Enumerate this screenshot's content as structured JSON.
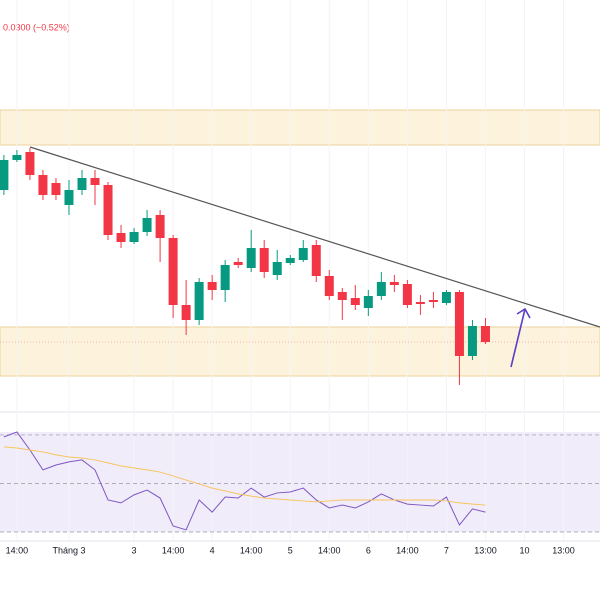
{
  "chart_data": [
    {
      "type": "candlestick",
      "header": "0.0300 (−0.52%)",
      "categories": [
        null,
        null,
        null,
        null,
        null,
        null,
        null,
        null,
        null,
        null,
        null,
        null,
        null,
        null,
        null,
        null,
        null,
        null,
        null,
        null,
        null,
        null,
        null,
        null,
        null,
        null,
        null,
        null,
        null,
        null,
        null,
        null,
        null,
        null,
        null,
        null,
        null,
        null
      ],
      "open": [
        410,
        440,
        448,
        425,
        417,
        395,
        410,
        422,
        415,
        367,
        358,
        368,
        385,
        362,
        295,
        280,
        318,
        310,
        338,
        332,
        352,
        325,
        337,
        340,
        355,
        324,
        308,
        302,
        292,
        304,
        318,
        316,
        298,
        300,
        297,
        308,
        244,
        274
      ],
      "high": [
        445,
        450,
        452,
        430,
        422,
        420,
        430,
        430,
        418,
        375,
        372,
        390,
        390,
        365,
        320,
        322,
        325,
        340,
        342,
        370,
        360,
        350,
        345,
        360,
        360,
        330,
        312,
        315,
        310,
        328,
        325,
        320,
        305,
        308,
        310,
        310,
        280,
        282
      ],
      "low": [
        405,
        438,
        420,
        400,
        400,
        385,
        405,
        395,
        360,
        352,
        356,
        364,
        338,
        282,
        265,
        275,
        300,
        298,
        332,
        328,
        322,
        320,
        335,
        338,
        318,
        300,
        280,
        290,
        284,
        300,
        308,
        292,
        285,
        292,
        295,
        215,
        240,
        256
      ],
      "close": [
        440,
        445,
        425,
        405,
        405,
        410,
        422,
        415,
        365,
        358,
        368,
        382,
        362,
        295,
        280,
        318,
        310,
        335,
        335,
        352,
        328,
        338,
        342,
        352,
        324,
        304,
        300,
        295,
        304,
        318,
        315,
        295,
        296,
        298,
        308,
        244,
        274,
        258
      ],
      "up_color": "#089981",
      "down_color": "#f23645",
      "xlim": [
        -0.3,
        45.8
      ],
      "ylim": [
        190,
        600
      ],
      "xticks": [
        {
          "value": 1,
          "label": "14:00"
        },
        {
          "value": 5,
          "label": "Tháng 3"
        },
        {
          "value": 10,
          "label": "3"
        },
        {
          "value": 13,
          "label": "14:00"
        },
        {
          "value": 16,
          "label": "4"
        },
        {
          "value": 19,
          "label": "14:00"
        },
        {
          "value": 22,
          "label": "5"
        },
        {
          "value": 25,
          "label": "14:00"
        },
        {
          "value": 28,
          "label": "6"
        },
        {
          "value": 31,
          "label": "14:00"
        },
        {
          "value": 34,
          "label": "7"
        },
        {
          "value": 37,
          "label": "13:00"
        },
        {
          "value": 40,
          "label": "10"
        },
        {
          "value": 43,
          "label": "13:00"
        }
      ]
    },
    {
      "type": "line",
      "series": [
        {
          "color": "#7e57c2",
          "values": [
            69.2,
            71.2,
            63.8,
            55.6,
            57.6,
            58.9,
            59.7,
            55.6,
            43.2,
            42.0,
            45.3,
            47.3,
            44.0,
            32.5,
            30.9,
            43.2,
            38.2,
            44.4,
            44.0,
            48.1,
            44.4,
            46.1,
            46.5,
            48.1,
            43.2,
            39.9,
            41.1,
            39.9,
            42.4,
            45.7,
            43.2,
            41.5,
            41.1,
            40.7,
            44.4,
            32.9,
            39.5,
            38.2
          ]
        },
        {
          "color": "#f7c55f",
          "values": [
            65.1,
            64.6,
            63.8,
            63.0,
            61.8,
            60.9,
            60.5,
            59.7,
            58.5,
            57.2,
            56.4,
            55.6,
            54.7,
            53.1,
            51.4,
            49.8,
            48.1,
            46.9,
            45.7,
            44.8,
            44.0,
            43.6,
            43.2,
            42.8,
            42.4,
            42.8,
            43.2,
            43.2,
            43.2,
            43.2,
            43.2,
            43.2,
            43.2,
            43.2,
            42.8,
            42.0,
            41.5,
            41.1
          ]
        }
      ],
      "hlines": [
        70,
        50,
        30
      ],
      "xlim": [
        -0.3,
        45.8
      ],
      "ylim": [
        26.7,
        74.1
      ]
    }
  ]
}
